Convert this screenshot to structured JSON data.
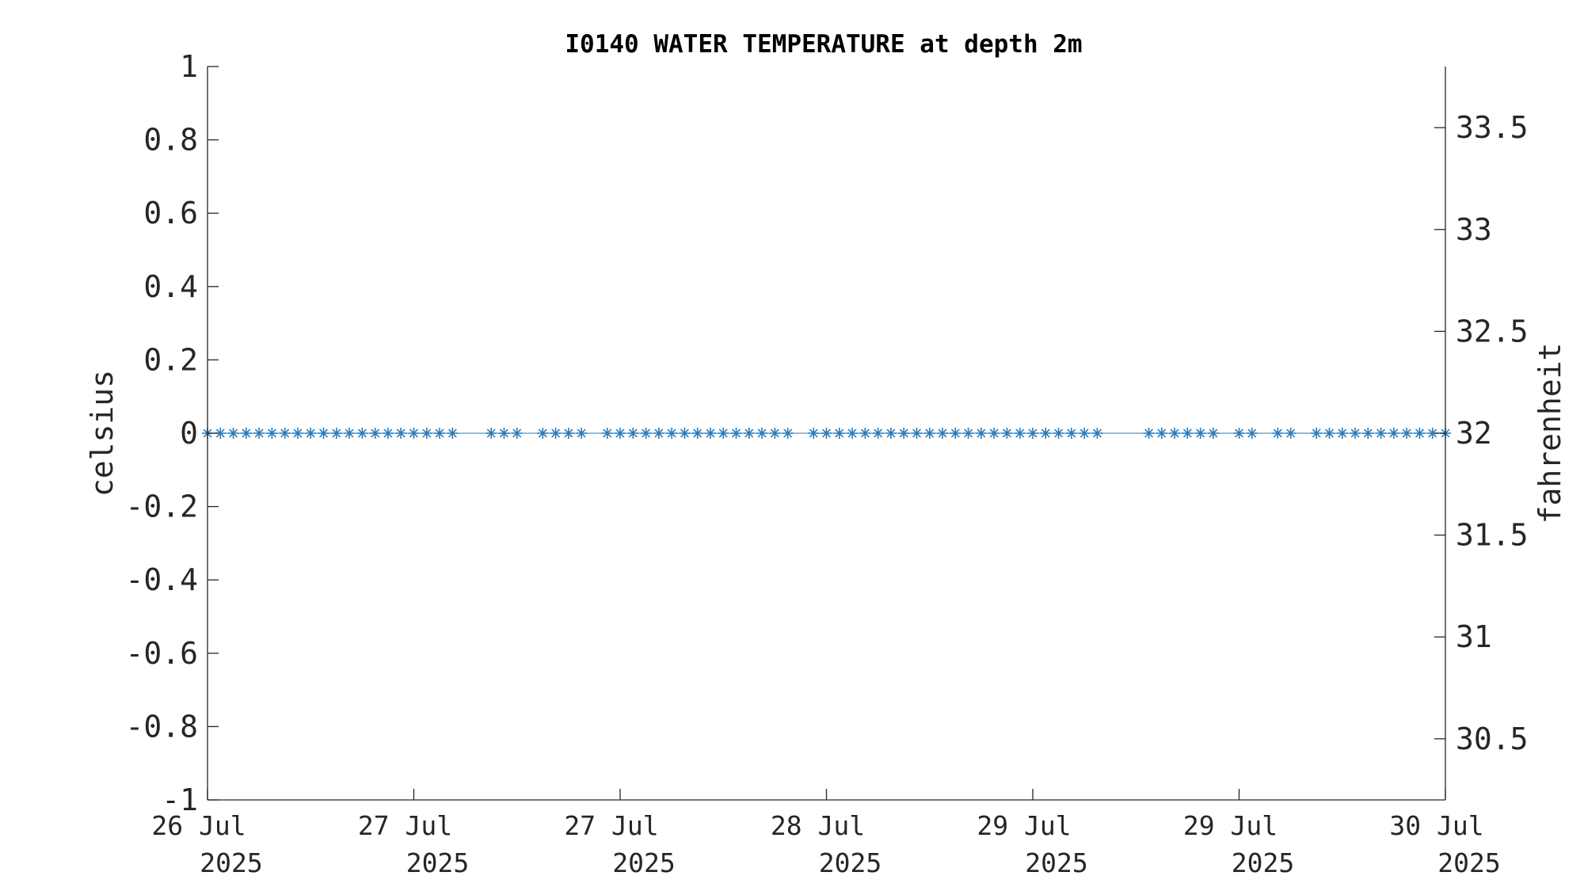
{
  "chart_data": {
    "type": "line",
    "title": "I0140 WATER TEMPERATURE at depth 2m",
    "ylabel_left": "celsius",
    "ylabel_right": "fahrenheit",
    "ylim_left": [
      -1,
      1
    ],
    "ylim_right": [
      30.2,
      33.8
    ],
    "left_ticks": [
      "1",
      "0.8",
      "0.6",
      "0.4",
      "0.2",
      "0",
      "-0.2",
      "-0.4",
      "-0.6",
      "-0.8",
      "-1"
    ],
    "left_tick_values": [
      1,
      0.8,
      0.6,
      0.4,
      0.2,
      0,
      -0.2,
      -0.4,
      -0.6,
      -0.8,
      -1
    ],
    "right_ticks": [
      "33.5",
      "33",
      "32.5",
      "32",
      "31.5",
      "31",
      "30.5"
    ],
    "right_tick_values": [
      33.5,
      33,
      32.5,
      32,
      31.5,
      31,
      30.5
    ],
    "x_ticks": [
      {
        "line1": "26 Jul",
        "line2": "2025"
      },
      {
        "line1": "27 Jul",
        "line2": "2025"
      },
      {
        "line1": "27 Jul",
        "line2": "2025"
      },
      {
        "line1": "28 Jul",
        "line2": "2025"
      },
      {
        "line1": "29 Jul",
        "line2": "2025"
      },
      {
        "line1": "29 Jul",
        "line2": "2025"
      },
      {
        "line1": "30 Jul",
        "line2": "2025"
      }
    ],
    "series": [
      {
        "color": "#2b7bba",
        "marker": "asterisk",
        "x_hours": [
          0,
          2,
          4,
          6,
          8,
          10,
          12,
          14,
          16,
          18,
          20,
          22,
          24,
          26,
          28,
          30,
          32,
          34,
          36,
          38,
          44,
          46,
          48,
          52,
          54,
          56,
          58,
          62,
          64,
          66,
          68,
          70,
          72,
          74,
          76,
          78,
          80,
          82,
          84,
          86,
          88,
          90,
          94,
          96,
          98,
          100,
          102,
          104,
          106,
          108,
          110,
          112,
          114,
          116,
          118,
          120,
          122,
          124,
          126,
          128,
          130,
          132,
          134,
          136,
          138,
          146,
          148,
          150,
          152,
          154,
          156,
          160,
          162,
          166,
          168,
          172,
          174,
          176,
          178,
          180,
          182,
          184,
          186,
          188,
          190,
          192
        ],
        "values": [
          0,
          0,
          0,
          0,
          0,
          0,
          0,
          0,
          0,
          0,
          0,
          0,
          0,
          0,
          0,
          0,
          0,
          0,
          0,
          0,
          0,
          0,
          0,
          0,
          0,
          0,
          0,
          0,
          0,
          0,
          0,
          0,
          0,
          0,
          0,
          0,
          0,
          0,
          0,
          0,
          0,
          0,
          0,
          0,
          0,
          0,
          0,
          0,
          0,
          0,
          0,
          0,
          0,
          0,
          0,
          0,
          0,
          0,
          0,
          0,
          0,
          0,
          0,
          0,
          0,
          0,
          0,
          0,
          0,
          0,
          0,
          0,
          0,
          0,
          0,
          0,
          0,
          0,
          0,
          0,
          0,
          0,
          0,
          0,
          0,
          0
        ]
      }
    ],
    "x_range_hours": [
      0,
      192
    ]
  }
}
